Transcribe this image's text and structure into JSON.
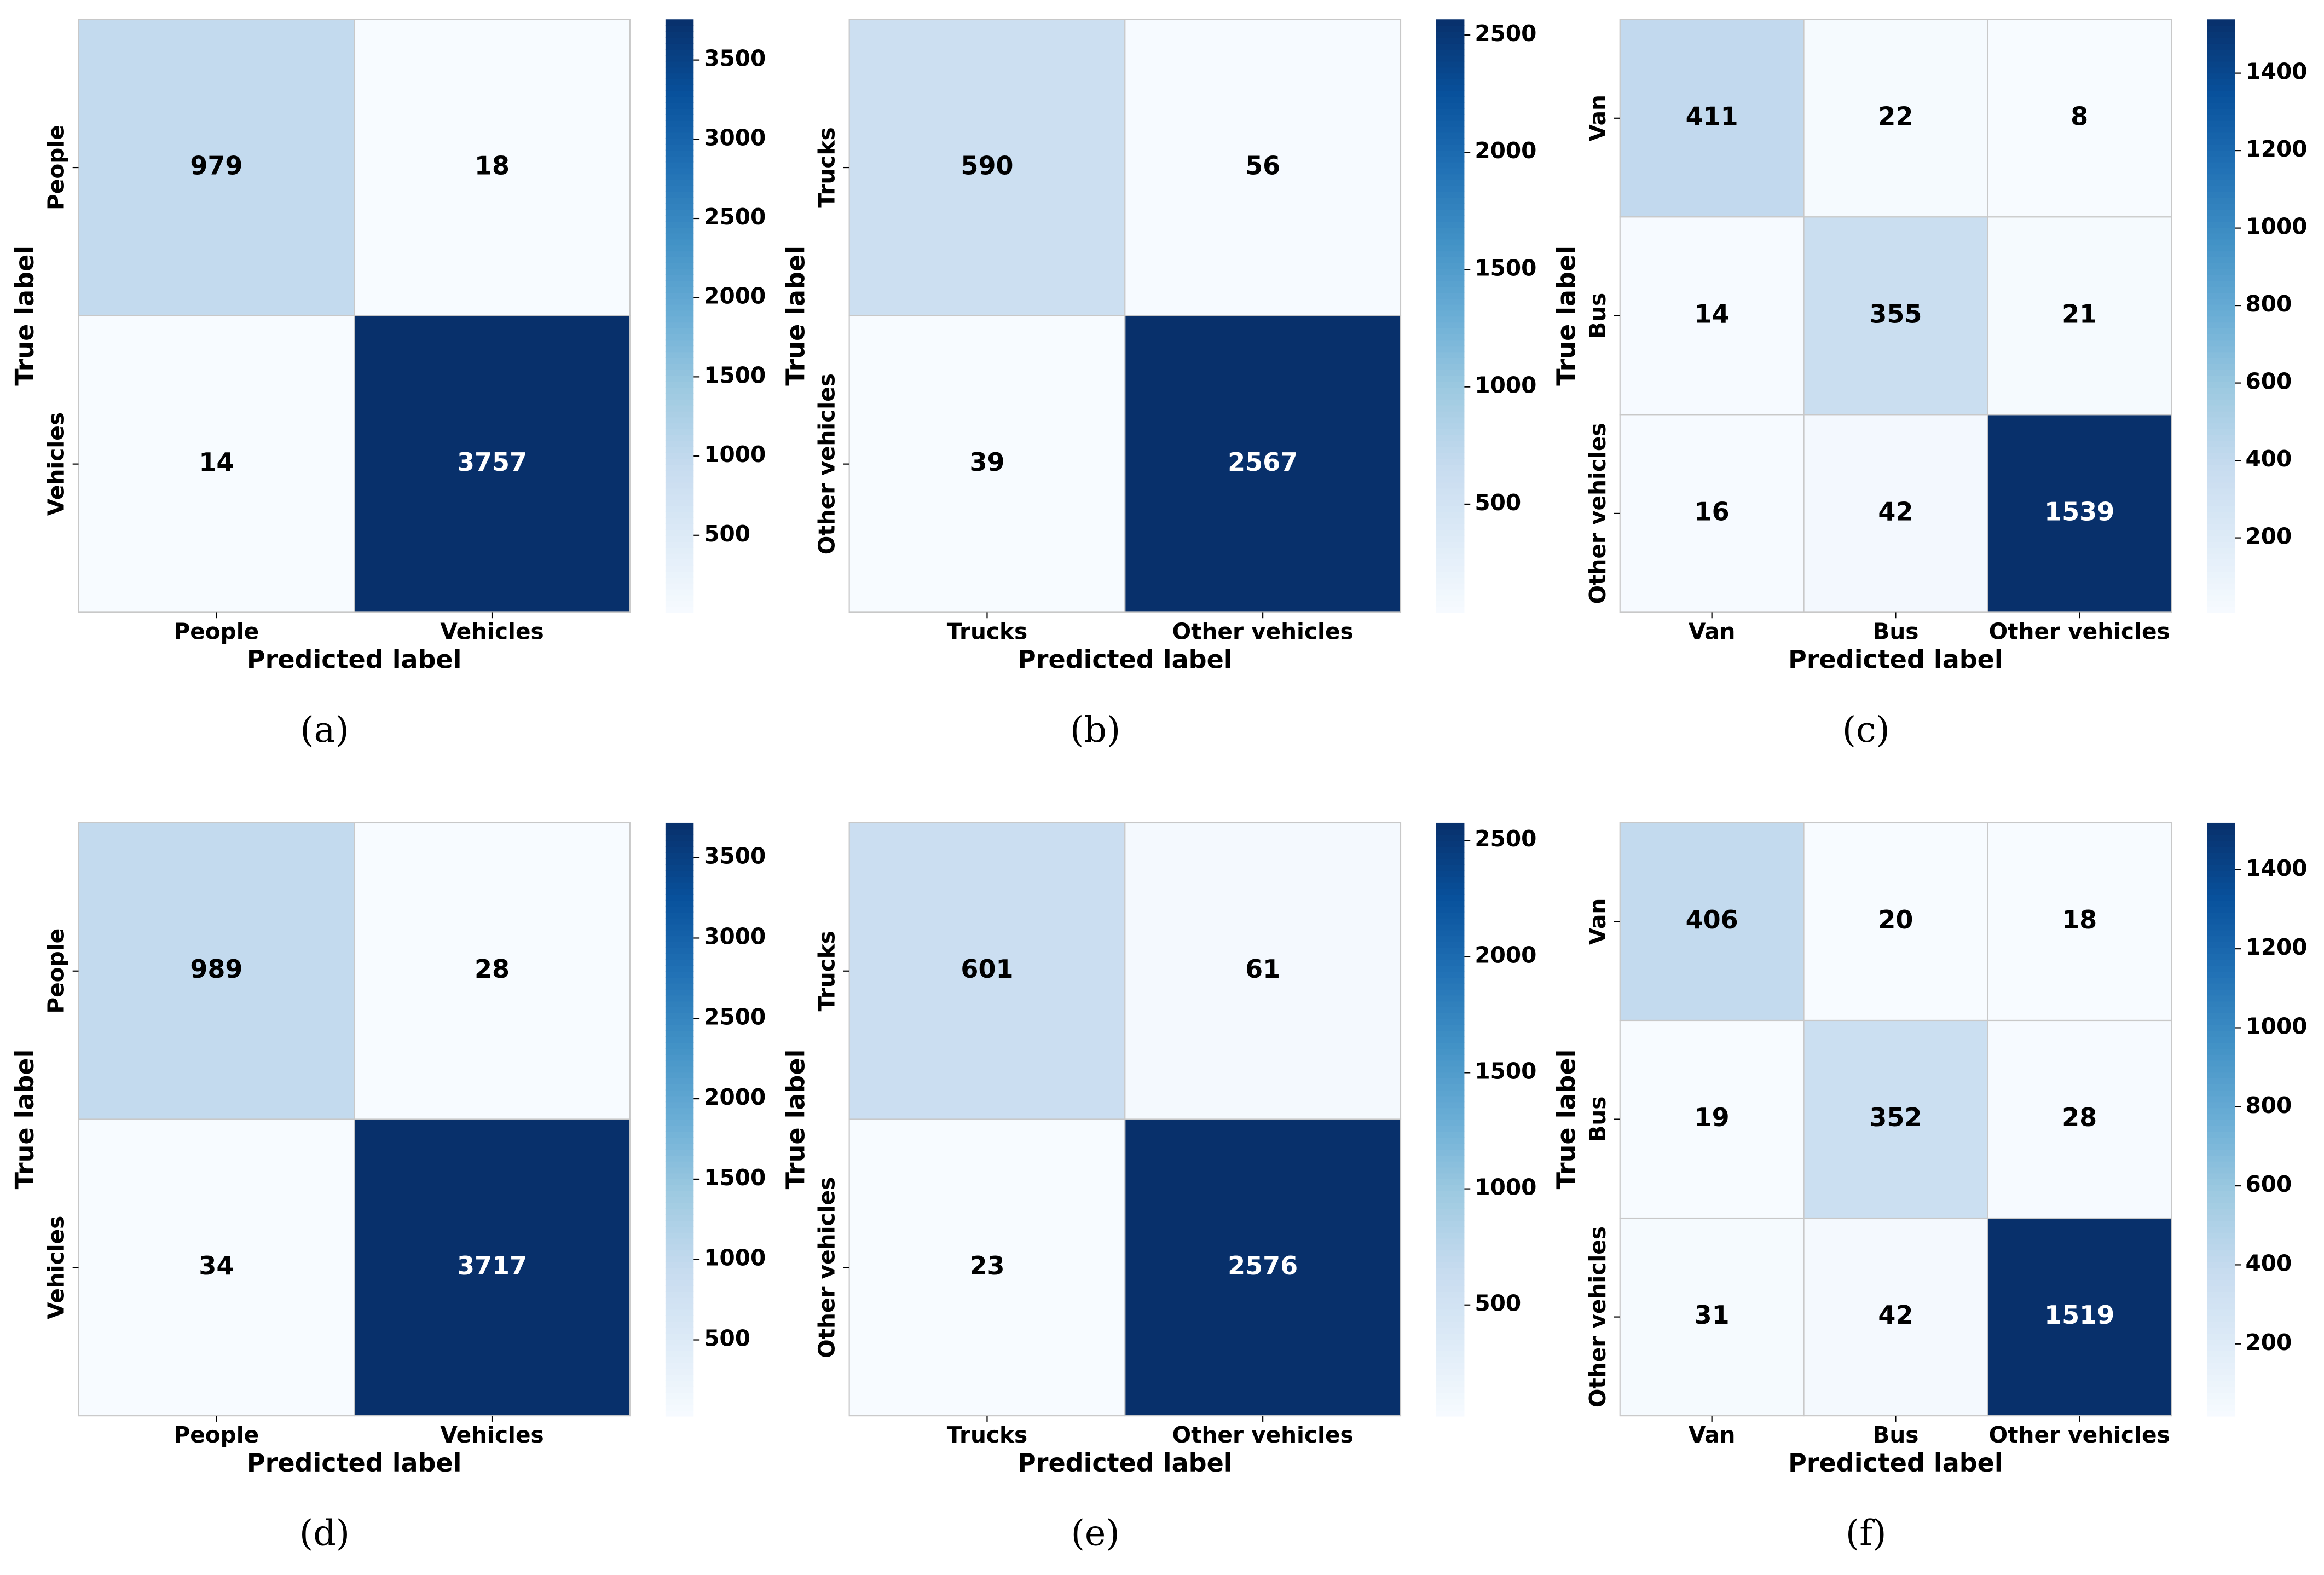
{
  "chart_data": [
    {
      "type": "heatmap",
      "caption": "(a)",
      "xlabel": "Predicted label",
      "ylabel": "True label",
      "x_categories": [
        "People",
        "Vehicles"
      ],
      "y_categories": [
        "People",
        "Vehicles"
      ],
      "values": [
        [
          979,
          18
        ],
        [
          14,
          3757
        ]
      ],
      "clim": [
        14,
        3757
      ],
      "cticks": [
        500,
        1000,
        1500,
        2000,
        2500,
        3000,
        3500
      ],
      "colormap": "Blues"
    },
    {
      "type": "heatmap",
      "caption": "(b)",
      "xlabel": "Predicted label",
      "ylabel": "True label",
      "x_categories": [
        "Trucks",
        "Other vehicles"
      ],
      "y_categories": [
        "Trucks",
        "Other vehicles"
      ],
      "values": [
        [
          590,
          56
        ],
        [
          39,
          2567
        ]
      ],
      "clim": [
        39,
        2567
      ],
      "cticks": [
        500,
        1000,
        1500,
        2000,
        2500
      ],
      "colormap": "Blues"
    },
    {
      "type": "heatmap",
      "caption": "(c)",
      "xlabel": "Predicted label",
      "ylabel": "True label",
      "x_categories": [
        "Van",
        "Bus",
        "Other vehicles"
      ],
      "y_categories": [
        "Van",
        "Bus",
        "Other vehicles"
      ],
      "values": [
        [
          411,
          22,
          8
        ],
        [
          14,
          355,
          21
        ],
        [
          16,
          42,
          1539
        ]
      ],
      "clim": [
        8,
        1539
      ],
      "cticks": [
        200,
        400,
        600,
        800,
        1000,
        1200,
        1400
      ],
      "colormap": "Blues"
    },
    {
      "type": "heatmap",
      "caption": "(d)",
      "xlabel": "Predicted label",
      "ylabel": "True label",
      "x_categories": [
        "People",
        "Vehicles"
      ],
      "y_categories": [
        "People",
        "Vehicles"
      ],
      "values": [
        [
          989,
          28
        ],
        [
          34,
          3717
        ]
      ],
      "clim": [
        28,
        3717
      ],
      "cticks": [
        500,
        1000,
        1500,
        2000,
        2500,
        3000,
        3500
      ],
      "colormap": "Blues"
    },
    {
      "type": "heatmap",
      "caption": "(e)",
      "xlabel": "Predicted label",
      "ylabel": "True label",
      "x_categories": [
        "Trucks",
        "Other vehicles"
      ],
      "y_categories": [
        "Trucks",
        "Other vehicles"
      ],
      "values": [
        [
          601,
          61
        ],
        [
          23,
          2576
        ]
      ],
      "clim": [
        23,
        2576
      ],
      "cticks": [
        500,
        1000,
        1500,
        2000,
        2500
      ],
      "colormap": "Blues"
    },
    {
      "type": "heatmap",
      "caption": "(f)",
      "xlabel": "Predicted label",
      "ylabel": "True label",
      "x_categories": [
        "Van",
        "Bus",
        "Other vehicles"
      ],
      "y_categories": [
        "Van",
        "Bus",
        "Other vehicles"
      ],
      "values": [
        [
          406,
          20,
          18
        ],
        [
          19,
          352,
          28
        ],
        [
          31,
          42,
          1519
        ]
      ],
      "clim": [
        18,
        1519
      ],
      "cticks": [
        200,
        400,
        600,
        800,
        1000,
        1200,
        1400
      ],
      "colormap": "Blues"
    }
  ]
}
